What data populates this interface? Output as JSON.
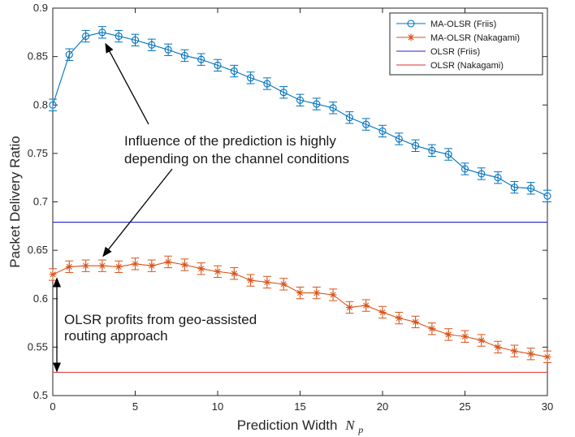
{
  "chart_data": {
    "type": "line",
    "xlabel": "Prediction Width",
    "xlabel_symbol": "N",
    "xlabel_subscript": "p",
    "ylabel": "Packet Delivery Ratio",
    "xlim": [
      0,
      30
    ],
    "ylim": [
      0.5,
      0.9
    ],
    "xticks": [
      0,
      5,
      10,
      15,
      20,
      25,
      30
    ],
    "yticks": [
      0.5,
      0.55,
      0.6,
      0.65,
      0.7,
      0.75,
      0.8,
      0.85,
      0.9
    ],
    "grid": false,
    "legend_position": "top-right",
    "series": [
      {
        "name": "MA-OLSR (Friis)",
        "color": "#0072BD",
        "marker": "circle",
        "x": [
          0,
          1,
          2,
          3,
          4,
          5,
          6,
          7,
          8,
          9,
          10,
          11,
          12,
          13,
          14,
          15,
          16,
          17,
          18,
          19,
          20,
          21,
          22,
          23,
          24,
          25,
          26,
          27,
          28,
          29,
          30
        ],
        "y": [
          0.8,
          0.852,
          0.871,
          0.875,
          0.871,
          0.867,
          0.862,
          0.857,
          0.851,
          0.847,
          0.841,
          0.835,
          0.828,
          0.822,
          0.813,
          0.805,
          0.801,
          0.797,
          0.787,
          0.78,
          0.773,
          0.765,
          0.758,
          0.753,
          0.749,
          0.734,
          0.729,
          0.725,
          0.715,
          0.714,
          0.706
        ],
        "error": 0.006
      },
      {
        "name": "MA-OLSR (Nakagami)",
        "color": "#D95319",
        "marker": "asterisk",
        "x": [
          0,
          1,
          2,
          3,
          4,
          5,
          6,
          7,
          8,
          9,
          10,
          11,
          12,
          13,
          14,
          15,
          16,
          17,
          18,
          19,
          20,
          21,
          22,
          23,
          24,
          25,
          26,
          27,
          28,
          29,
          30
        ],
        "y": [
          0.625,
          0.633,
          0.634,
          0.634,
          0.633,
          0.636,
          0.634,
          0.638,
          0.635,
          0.631,
          0.628,
          0.626,
          0.619,
          0.617,
          0.615,
          0.606,
          0.606,
          0.604,
          0.591,
          0.593,
          0.586,
          0.58,
          0.576,
          0.569,
          0.563,
          0.561,
          0.557,
          0.55,
          0.546,
          0.543,
          0.54
        ],
        "error": 0.006
      },
      {
        "name": "OLSR (Friis)",
        "color": "#2020D0",
        "marker": "none",
        "x": [
          0,
          30
        ],
        "y": [
          0.679,
          0.679
        ]
      },
      {
        "name": "OLSR (Nakagami)",
        "color": "#E03030",
        "marker": "none",
        "x": [
          0,
          30
        ],
        "y": [
          0.524,
          0.524
        ]
      }
    ],
    "annotations": [
      {
        "text_lines": [
          "Influence of the prediction is highly",
          "depending on the channel conditions"
        ],
        "arrows_to": [
          [
            3,
            0.87
          ],
          [
            3,
            0.638
          ]
        ]
      },
      {
        "text_lines": [
          "OLSR profits from geo-assisted",
          "routing approach"
        ],
        "double_arrow": [
          [
            0.1,
            0.622
          ],
          [
            0.1,
            0.524
          ]
        ]
      }
    ]
  }
}
